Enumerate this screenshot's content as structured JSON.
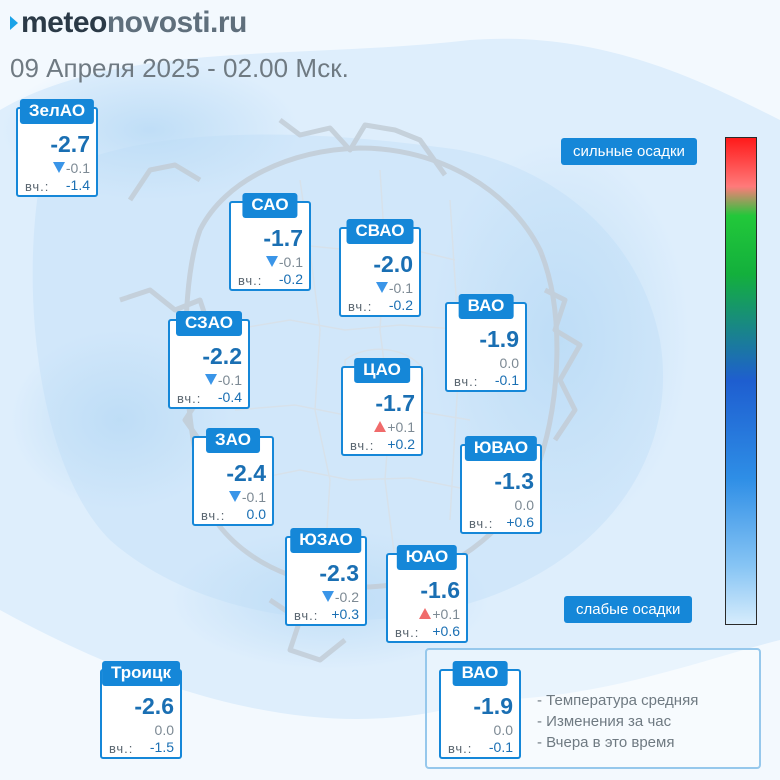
{
  "header": {
    "logo_part1": "meteo",
    "logo_part2": "novosti.ru",
    "subtitle": "09 Апреля 2025 - 02.00 Мск."
  },
  "colors": {
    "accent": "#1587d8",
    "temp_text": "#1a6fb3",
    "arrow_down": "#3a95e8",
    "arrow_up": "#f06b6b"
  },
  "districts": [
    {
      "name": "ЗелАО",
      "temp": "-2.7",
      "change": "-0.1",
      "trend": "down",
      "yesterday_label": "вч.:",
      "yesterday": "-1.4"
    },
    {
      "name": "САО",
      "temp": "-1.7",
      "change": "-0.1",
      "trend": "down",
      "yesterday_label": "вч.:",
      "yesterday": "-0.2"
    },
    {
      "name": "СВАО",
      "temp": "-2.0",
      "change": "-0.1",
      "trend": "down",
      "yesterday_label": "вч.:",
      "yesterday": "-0.2"
    },
    {
      "name": "ВАО",
      "temp": "-1.9",
      "change": "0.0",
      "trend": "none",
      "yesterday_label": "вч.:",
      "yesterday": "-0.1"
    },
    {
      "name": "СЗАО",
      "temp": "-2.2",
      "change": "-0.1",
      "trend": "down",
      "yesterday_label": "вч.:",
      "yesterday": "-0.4"
    },
    {
      "name": "ЦАО",
      "temp": "-1.7",
      "change": "+0.1",
      "trend": "up",
      "yesterday_label": "вч.:",
      "yesterday": "+0.2"
    },
    {
      "name": "ЗАО",
      "temp": "-2.4",
      "change": "-0.1",
      "trend": "down",
      "yesterday_label": "вч.:",
      "yesterday": "0.0"
    },
    {
      "name": "ЮВАО",
      "temp": "-1.3",
      "change": "0.0",
      "trend": "none",
      "yesterday_label": "вч.:",
      "yesterday": "+0.6"
    },
    {
      "name": "ЮЗАО",
      "temp": "-2.3",
      "change": "-0.2",
      "trend": "down",
      "yesterday_label": "вч.:",
      "yesterday": "+0.3"
    },
    {
      "name": "ЮАО",
      "temp": "-1.6",
      "change": "+0.1",
      "trend": "up",
      "yesterday_label": "вч.:",
      "yesterday": "+0.6"
    },
    {
      "name": "Троицк",
      "temp": "-2.6",
      "change": "0.0",
      "trend": "none",
      "yesterday_label": "вч.:",
      "yesterday": "-1.5"
    }
  ],
  "scale": {
    "top_label": "сильные осадки",
    "bottom_label": "слабые осадки"
  },
  "legend": {
    "name": "ВАО",
    "temp": "-1.9",
    "change": "0.0",
    "yesterday_label": "вч.:",
    "yesterday": "-0.1",
    "line1": "- Температура средняя",
    "line2": "- Изменения за час",
    "line3": "- Вчера в это время"
  }
}
